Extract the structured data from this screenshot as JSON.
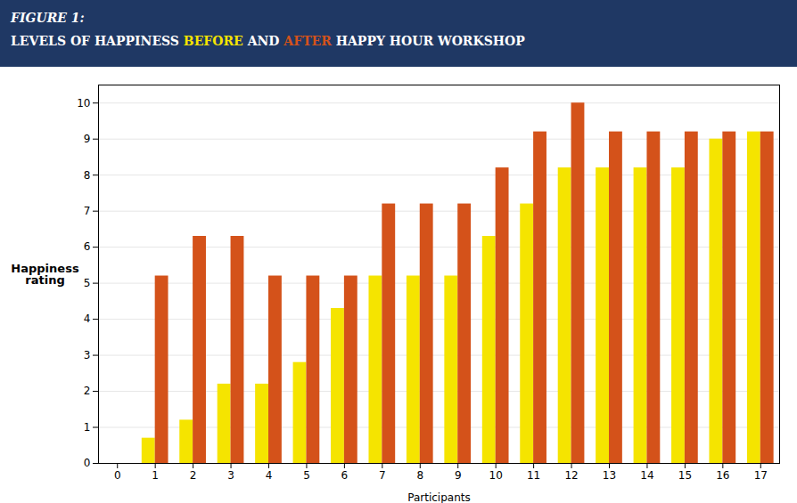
{
  "chart_data": {
    "type": "bar",
    "title": "FIGURE 1:",
    "subtitle": "LEVELS OF HAPPINESS BEFORE AND AFTER HAPPY HOUR WORKSHOP",
    "categories": [
      0,
      1,
      2,
      3,
      4,
      5,
      6,
      7,
      8,
      9,
      10,
      11,
      12,
      13,
      14,
      15,
      16,
      17
    ],
    "series": [
      {
        "name": "BEFORE",
        "color": "#F5E400",
        "values": [
          null,
          0.7,
          1.2,
          2.2,
          2.2,
          2.8,
          4.3,
          5.2,
          5.2,
          5.2,
          6.3,
          7.2,
          8.2,
          8.2,
          8.2,
          8.2,
          9.0,
          9.2
        ]
      },
      {
        "name": "AFTER",
        "color": "#D4521A",
        "values": [
          null,
          5.2,
          6.3,
          6.3,
          5.2,
          5.2,
          5.2,
          7.2,
          7.2,
          7.2,
          8.2,
          9.2,
          10.0,
          9.2,
          9.2,
          9.2,
          9.2,
          9.2
        ]
      }
    ],
    "xlabel": "Participants",
    "ylabel": "Happiness\nrating",
    "ylim": [
      0,
      10.5
    ],
    "yticks": [
      0,
      1,
      2,
      3,
      4,
      5,
      6,
      7,
      8,
      9,
      10
    ],
    "grid": true
  }
}
